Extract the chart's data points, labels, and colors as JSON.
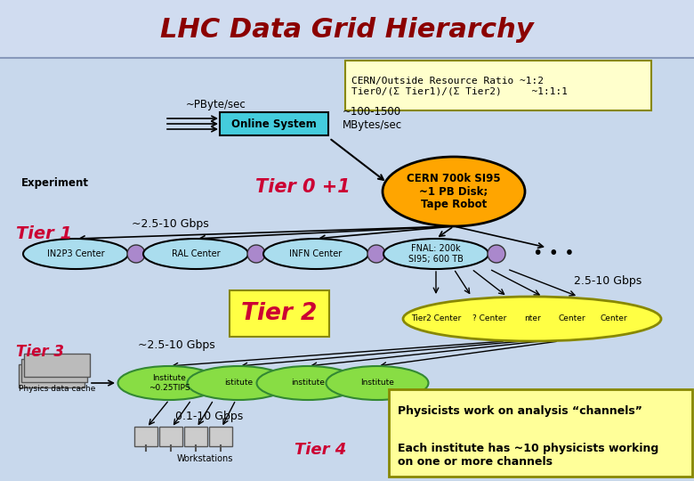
{
  "title": "LHC Data Grid Hierarchy",
  "title_fontsize": 22,
  "title_color": "#8B0000",
  "title_style": "italic",
  "title_weight": "bold",
  "bg_color": "#C8D8EC",
  "header_bg": "#C8D8EC",
  "info_box_text": "CERN/Outside Resource Ratio ~1:2\nTier0/(Σ Tier1)/(Σ Tier2)     ~1:1:1",
  "tier0_text": "CERN 700k SI95\n~1 PB Disk;\nTape Robot",
  "tier0_color": "#FFA500",
  "tier1_ellipse_color": "#AADDEE",
  "tier1_centers": [
    "IN2P3 Center",
    "RAL Center",
    "INFN Center",
    "FNAL: 200k\nSI95; 600 TB"
  ],
  "tier2_color": "#FFFF44",
  "tier2_centers": [
    "Tier2 Center",
    "? Center",
    "nter",
    "Center",
    "Center"
  ],
  "tier3_color": "#88DD44",
  "tier3_institutes": [
    "Institute\n~0.25TIPS",
    "istitute",
    "institute",
    "Institute"
  ],
  "label_tier0": "Tier 0 +1",
  "label_tier1": "Tier 1",
  "label_tier2": "Tier 2",
  "label_tier3": "Tier 3",
  "label_tier4": "Tier 4",
  "label_color_tier": "#CC0033",
  "online_system_color": "#44CCDD",
  "speed_25_10": "~2.5-10 Gbps",
  "speed_25_10b": "2.5-10 Gbps",
  "speed_01_10": "0.1-10 Gbps",
  "pbyte": "~PByte/sec",
  "mbyte": "~100-1500\nMBytes/sec",
  "experiment": "Experiment",
  "info_text1": "Physicists work on analysis “channels”",
  "info_text2": "Each institute has ~10 physicists working\non one or more channels",
  "info_box_color": "#FFFF99",
  "info_box_border": "#888800",
  "header_line_color": "#4444AA"
}
